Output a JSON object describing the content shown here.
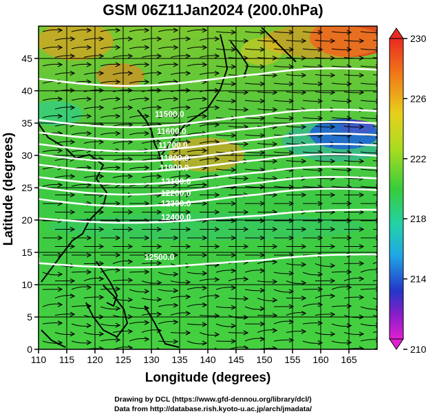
{
  "title": "GSM 06Z11Jan2024 (200.0hPa)",
  "xlabel": "Longitude (degrees)",
  "ylabel": "Latitude  (degrees)",
  "credits": {
    "line1": "Drawing by DCL (https://www.gfd-dennou.org/library/dcl/)",
    "line2": "Data from http://database.rish.kyoto-u.ac.jp/arch/jmadata/"
  },
  "map": {
    "lon_range": [
      110,
      170
    ],
    "lat_range": [
      0,
      50
    ],
    "lon_ticks": [
      "110",
      "115",
      "120",
      "125",
      "130",
      "135",
      "140",
      "145",
      "150",
      "155",
      "160",
      "165"
    ],
    "lat_ticks": [
      "0",
      "5",
      "10",
      "15",
      "20",
      "25",
      "30",
      "35",
      "40",
      "45"
    ],
    "contour_labels": [
      "11500.0",
      "11600.0",
      "11700.0",
      "11800.0",
      "11900.0",
      "12100.0",
      "12200.0",
      "12300.0",
      "12400.0",
      "12500.0"
    ]
  },
  "colorbar": {
    "ticks": [
      "230",
      "226",
      "222",
      "218",
      "214",
      "210"
    ],
    "min": 210,
    "max": 230
  },
  "colors": {
    "warm": "#e8321e",
    "mid": "#34c838",
    "cool": "#1e3cc8",
    "cold": "#e020d0"
  }
}
